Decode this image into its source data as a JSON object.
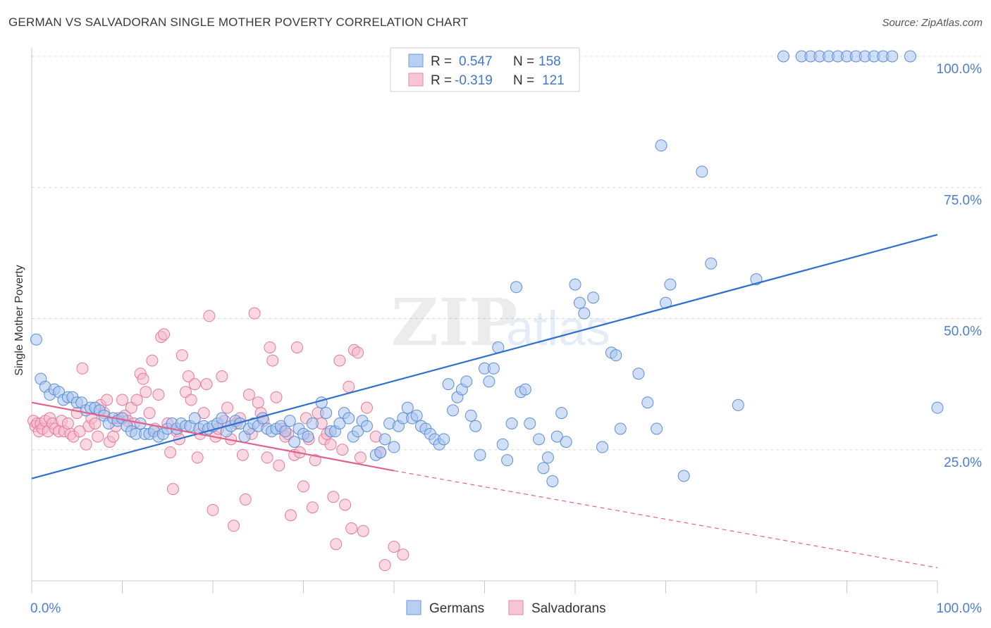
{
  "title": "GERMAN VS SALVADORAN SINGLE MOTHER POVERTY CORRELATION CHART",
  "source": "Source: ZipAtlas.com",
  "watermark": {
    "zip": "ZIP",
    "atlas": "atlas"
  },
  "colors": {
    "german_fill": "#a9c4ee",
    "german_stroke": "#5b8ed6",
    "german_line": "#2f6fd0",
    "salvadoran_fill": "#f5b8cb",
    "salvadoran_stroke": "#e27b9c",
    "salvadoran_line": "#e0628c",
    "axis_text": "#4a7fcf",
    "grid": "#d8d8d8"
  },
  "legend": {
    "rows": [
      {
        "r_label": "R =",
        "r_value": "0.547",
        "n_label": "N =",
        "n_value": "158",
        "series": "german"
      },
      {
        "r_label": "R =",
        "r_value": "-0.319",
        "n_label": "N =",
        "n_value": "121",
        "series": "salvadoran"
      }
    ]
  },
  "chart_data": {
    "type": "scatter",
    "title": "GERMAN VS SALVADORAN SINGLE MOTHER POVERTY CORRELATION CHART",
    "xlabel": "",
    "ylabel": "Single Mother Poverty",
    "xlim": [
      0,
      100
    ],
    "ylim": [
      0,
      100
    ],
    "x_tick_labels": [
      "0.0%",
      "100.0%"
    ],
    "y_tick_labels": [
      "25.0%",
      "50.0%",
      "75.0%",
      "100.0%"
    ],
    "y_ticks": [
      25,
      50,
      75,
      100
    ],
    "grid": true,
    "legend_position": "top-center",
    "bottom_legend": [
      "Germans",
      "Salvadorans"
    ],
    "series": [
      {
        "name": "Germans",
        "key": "german",
        "r": 0.547,
        "n": 158,
        "trend": {
          "x": [
            0,
            100
          ],
          "y": [
            19.5,
            66
          ]
        },
        "points": [
          [
            0.5,
            46
          ],
          [
            1,
            38.5
          ],
          [
            1.5,
            37
          ],
          [
            2,
            35.5
          ],
          [
            2.5,
            36.5
          ],
          [
            3,
            36
          ],
          [
            3.5,
            34.5
          ],
          [
            4,
            35
          ],
          [
            4.5,
            35
          ],
          [
            5,
            34
          ],
          [
            5.5,
            34
          ],
          [
            6,
            32.5
          ],
          [
            6.5,
            33
          ],
          [
            7,
            33
          ],
          [
            7.5,
            32.5
          ],
          [
            8,
            31.5
          ],
          [
            8.5,
            30
          ],
          [
            9,
            31
          ],
          [
            9.5,
            30.5
          ],
          [
            10,
            31
          ],
          [
            10.5,
            29.5
          ],
          [
            11,
            28.5
          ],
          [
            11.5,
            28
          ],
          [
            12,
            30
          ],
          [
            12.5,
            28
          ],
          [
            13,
            28
          ],
          [
            13.5,
            28.5
          ],
          [
            14,
            27.5
          ],
          [
            14.5,
            28
          ],
          [
            15,
            29
          ],
          [
            15.5,
            30
          ],
          [
            16,
            29
          ],
          [
            16.5,
            30
          ],
          [
            17,
            29.5
          ],
          [
            17.5,
            29.5
          ],
          [
            18,
            31
          ],
          [
            18.5,
            29
          ],
          [
            19,
            29.5
          ],
          [
            19.5,
            29
          ],
          [
            20,
            29.5
          ],
          [
            20.5,
            30
          ],
          [
            21,
            31
          ],
          [
            21.5,
            28.5
          ],
          [
            22,
            29.5
          ],
          [
            22.5,
            30.5
          ],
          [
            23,
            30
          ],
          [
            23.5,
            27.5
          ],
          [
            24,
            29
          ],
          [
            24.5,
            30
          ],
          [
            25,
            29.5
          ],
          [
            25.5,
            31
          ],
          [
            26,
            29
          ],
          [
            26.5,
            28.5
          ],
          [
            27,
            29
          ],
          [
            27.5,
            29.5
          ],
          [
            28,
            28.5
          ],
          [
            28.5,
            30.5
          ],
          [
            29,
            26.5
          ],
          [
            29.5,
            29
          ],
          [
            30,
            28
          ],
          [
            30.5,
            27.5
          ],
          [
            31,
            30
          ],
          [
            32,
            34
          ],
          [
            32.5,
            32
          ],
          [
            33,
            28.5
          ],
          [
            33.5,
            28.5
          ],
          [
            34,
            30
          ],
          [
            34.5,
            32
          ],
          [
            35,
            31
          ],
          [
            35.5,
            27.5
          ],
          [
            36,
            28.5
          ],
          [
            36.5,
            30.5
          ],
          [
            37,
            29.5
          ],
          [
            38,
            24
          ],
          [
            38.5,
            24.5
          ],
          [
            39,
            27
          ],
          [
            39.5,
            30
          ],
          [
            40,
            25.5
          ],
          [
            40.5,
            29.5
          ],
          [
            41,
            31
          ],
          [
            41.5,
            33
          ],
          [
            42,
            31
          ],
          [
            42.5,
            31.5
          ],
          [
            43,
            29.5
          ],
          [
            43.5,
            29
          ],
          [
            44,
            28
          ],
          [
            44.5,
            27
          ],
          [
            45,
            26
          ],
          [
            45.5,
            27
          ],
          [
            46,
            37.5
          ],
          [
            46.5,
            32.5
          ],
          [
            47,
            35
          ],
          [
            47.5,
            36.5
          ],
          [
            48,
            38
          ],
          [
            48.5,
            31.5
          ],
          [
            49,
            29.5
          ],
          [
            49.5,
            24
          ],
          [
            50,
            40.5
          ],
          [
            50.5,
            38
          ],
          [
            51,
            40.5
          ],
          [
            51.5,
            44.5
          ],
          [
            52,
            26
          ],
          [
            52.5,
            23
          ],
          [
            53,
            30
          ],
          [
            53.5,
            56
          ],
          [
            54,
            36
          ],
          [
            54.5,
            36.5
          ],
          [
            55,
            30
          ],
          [
            56,
            27
          ],
          [
            56.5,
            21.5
          ],
          [
            57,
            23.5
          ],
          [
            57.5,
            19
          ],
          [
            58,
            27.5
          ],
          [
            58.5,
            32
          ],
          [
            59,
            26.5
          ],
          [
            60,
            56.5
          ],
          [
            60.5,
            53
          ],
          [
            61,
            51
          ],
          [
            62,
            54
          ],
          [
            63,
            25.5
          ],
          [
            64,
            43.5
          ],
          [
            64.5,
            43
          ],
          [
            65,
            29
          ],
          [
            67,
            39.5
          ],
          [
            68,
            34
          ],
          [
            69,
            29
          ],
          [
            69.5,
            83
          ],
          [
            70,
            53
          ],
          [
            70.5,
            56.5
          ],
          [
            72,
            20
          ],
          [
            74,
            78
          ],
          [
            75,
            60.5
          ],
          [
            78,
            33.5
          ],
          [
            80,
            57.5
          ],
          [
            83,
            100
          ],
          [
            85,
            100
          ],
          [
            86,
            100
          ],
          [
            87,
            100
          ],
          [
            88,
            100
          ],
          [
            89,
            100
          ],
          [
            90,
            100
          ],
          [
            91,
            100
          ],
          [
            92,
            100
          ],
          [
            93,
            100
          ],
          [
            94,
            100
          ],
          [
            95,
            100
          ],
          [
            97,
            100
          ],
          [
            100,
            33
          ]
        ]
      },
      {
        "name": "Salvadorans",
        "key": "salvadoran",
        "r": -0.319,
        "n": 121,
        "trend": {
          "x": [
            0,
            40
          ],
          "y": [
            34,
            21
          ],
          "dashed_to": [
            100,
            2.5
          ]
        },
        "points": [
          [
            0.2,
            30.5
          ],
          [
            0.4,
            29.5
          ],
          [
            0.6,
            30
          ],
          [
            0.8,
            28.5
          ],
          [
            1,
            30
          ],
          [
            1.2,
            29
          ],
          [
            1.5,
            30.5
          ],
          [
            1.8,
            28.5
          ],
          [
            2,
            31
          ],
          [
            2.3,
            30
          ],
          [
            2.6,
            29
          ],
          [
            3,
            28.5
          ],
          [
            3.3,
            30.5
          ],
          [
            3.6,
            28.5
          ],
          [
            4,
            30
          ],
          [
            4.3,
            28
          ],
          [
            4.6,
            27.5
          ],
          [
            5,
            32
          ],
          [
            5.3,
            28.5
          ],
          [
            5.6,
            40.5
          ],
          [
            6,
            26
          ],
          [
            6.3,
            29.5
          ],
          [
            6.6,
            31
          ],
          [
            7,
            30
          ],
          [
            7.3,
            27.5
          ],
          [
            7.6,
            33.5
          ],
          [
            8,
            32
          ],
          [
            8.3,
            34.5
          ],
          [
            8.6,
            26.5
          ],
          [
            9,
            27.5
          ],
          [
            9.3,
            29.5
          ],
          [
            9.6,
            31
          ],
          [
            10,
            34.5
          ],
          [
            10.3,
            31.5
          ],
          [
            10.6,
            30.5
          ],
          [
            11,
            33
          ],
          [
            11.3,
            30
          ],
          [
            11.6,
            34.5
          ],
          [
            12,
            39.5
          ],
          [
            12.3,
            38.5
          ],
          [
            12.6,
            36
          ],
          [
            13,
            32
          ],
          [
            13.3,
            42
          ],
          [
            13.6,
            29
          ],
          [
            14,
            35.5
          ],
          [
            14.3,
            46.5
          ],
          [
            14.6,
            47
          ],
          [
            15,
            30
          ],
          [
            15.3,
            24.5
          ],
          [
            15.6,
            17.5
          ],
          [
            16,
            28.5
          ],
          [
            16.3,
            27
          ],
          [
            16.6,
            43
          ],
          [
            17,
            36
          ],
          [
            17.3,
            39
          ],
          [
            17.6,
            34.5
          ],
          [
            18,
            37.5
          ],
          [
            18.3,
            23.5
          ],
          [
            18.6,
            28
          ],
          [
            19,
            32
          ],
          [
            19.3,
            37.5
          ],
          [
            19.6,
            50.5
          ],
          [
            20,
            13.5
          ],
          [
            20.3,
            27.5
          ],
          [
            20.6,
            29
          ],
          [
            21,
            39
          ],
          [
            21.3,
            30.5
          ],
          [
            21.6,
            33
          ],
          [
            22,
            27
          ],
          [
            22.3,
            10.5
          ],
          [
            22.6,
            30
          ],
          [
            23,
            31
          ],
          [
            23.3,
            24
          ],
          [
            23.6,
            15.5
          ],
          [
            24,
            35.5
          ],
          [
            24.3,
            28
          ],
          [
            24.6,
            51
          ],
          [
            25,
            34
          ],
          [
            25.3,
            32
          ],
          [
            25.6,
            30.5
          ],
          [
            26,
            23.5
          ],
          [
            26.3,
            44.5
          ],
          [
            26.6,
            42
          ],
          [
            27,
            35
          ],
          [
            27.3,
            22
          ],
          [
            27.6,
            29
          ],
          [
            28,
            27.5
          ],
          [
            28.3,
            28
          ],
          [
            28.6,
            12.5
          ],
          [
            29,
            24
          ],
          [
            29.3,
            44.5
          ],
          [
            29.6,
            24.5
          ],
          [
            30,
            18
          ],
          [
            30.3,
            31
          ],
          [
            30.6,
            27
          ],
          [
            31,
            14
          ],
          [
            31.3,
            23
          ],
          [
            31.6,
            32
          ],
          [
            32,
            30
          ],
          [
            32.3,
            27
          ],
          [
            32.6,
            28
          ],
          [
            33,
            26
          ],
          [
            33.3,
            16
          ],
          [
            33.6,
            7
          ],
          [
            34,
            42
          ],
          [
            34.3,
            25
          ],
          [
            34.6,
            14.5
          ],
          [
            35,
            37
          ],
          [
            35.3,
            10
          ],
          [
            35.6,
            44
          ],
          [
            36,
            43.5
          ],
          [
            36.3,
            23.5
          ],
          [
            36.6,
            9.5
          ],
          [
            37,
            33
          ],
          [
            38,
            27.5
          ],
          [
            38.5,
            24.5
          ],
          [
            39,
            3
          ],
          [
            40,
            6.5
          ],
          [
            41,
            5
          ]
        ]
      }
    ]
  }
}
